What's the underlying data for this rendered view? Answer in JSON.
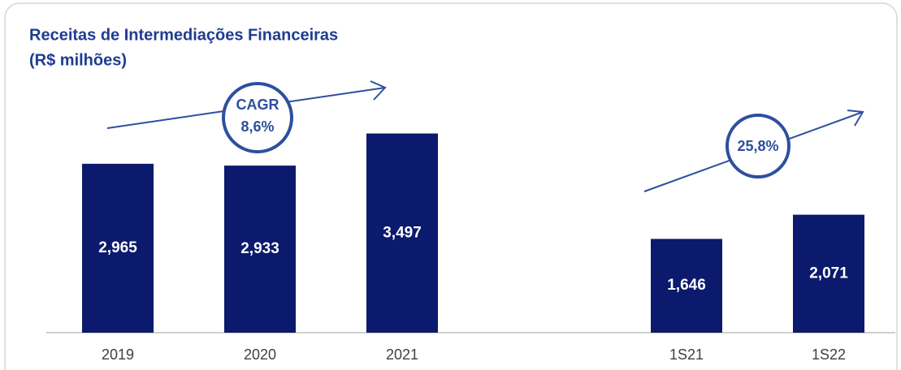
{
  "chart_data": {
    "type": "bar",
    "title": "Receitas de Intermediações Financeiras",
    "subtitle": "(R$ milhões)",
    "categories": [
      "2019",
      "2020",
      "2021",
      null,
      "1S21",
      "1S22"
    ],
    "values": [
      2965,
      2933,
      3497,
      null,
      1646,
      2071
    ],
    "value_labels": [
      "2,965",
      "2,933",
      "3,497",
      null,
      "1,646",
      "2,071"
    ],
    "color": "#0b1a6c",
    "ylim": [
      0,
      5000
    ],
    "annotations": [
      "CAGR",
      "8,6%",
      "25,8%"
    ]
  }
}
